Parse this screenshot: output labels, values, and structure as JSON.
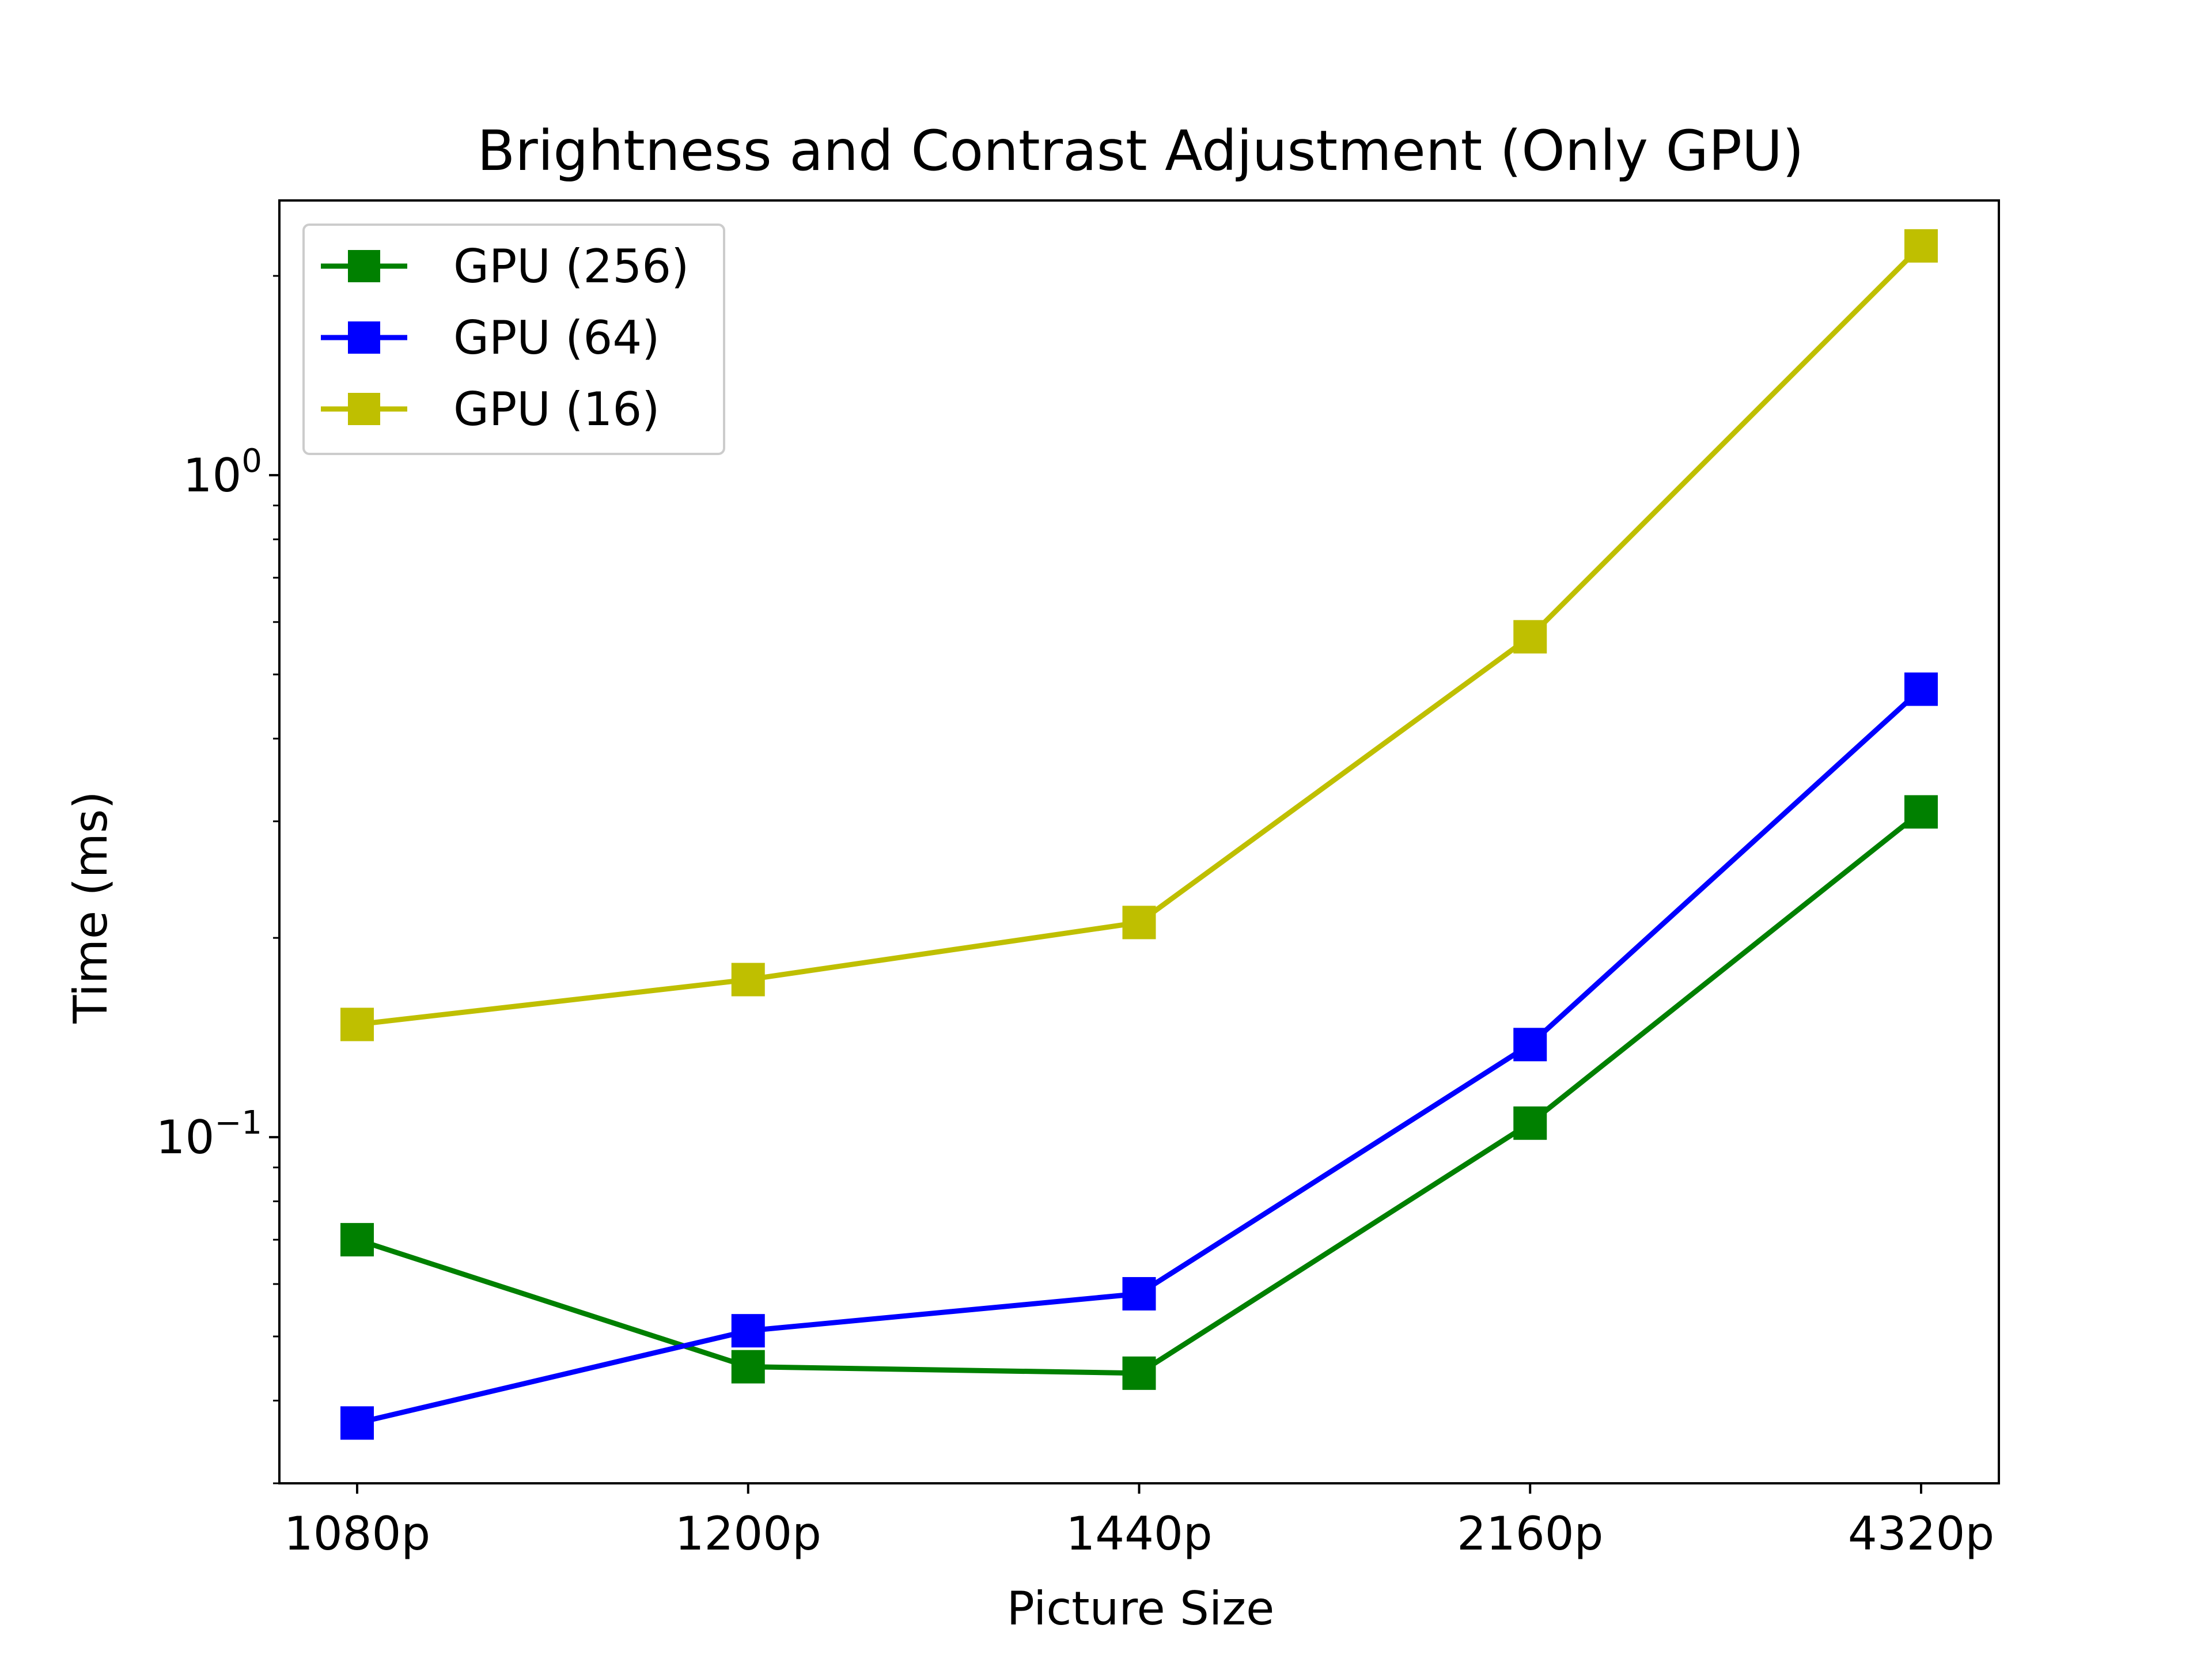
{
  "chart_data": {
    "type": "line",
    "title": "Brightness and Contrast Adjustment (Only GPU)",
    "xlabel": "Picture Size",
    "ylabel": "Time (ms)",
    "categories": [
      "1080p",
      "1200p",
      "1440p",
      "2160p",
      "4320p"
    ],
    "yscale": "log",
    "ylim": [
      0.03,
      2.6
    ],
    "yticks": [
      {
        "value": 1.0,
        "base": "10",
        "exp": "0"
      },
      {
        "value": 0.1,
        "base": "10",
        "exp": "−1"
      }
    ],
    "grid": false,
    "legend_position": "upper-left",
    "series": [
      {
        "name": "GPU (256)",
        "color": "#008000",
        "marker": "square",
        "values": [
          0.07,
          0.045,
          0.044,
          0.105,
          0.31
        ]
      },
      {
        "name": "GPU (64)",
        "color": "#0000ff",
        "marker": "square",
        "values": [
          0.037,
          0.051,
          0.058,
          0.138,
          0.475
        ]
      },
      {
        "name": "GPU (16)",
        "color": "#bfbf00",
        "marker": "square",
        "values": [
          0.148,
          0.173,
          0.211,
          0.57,
          2.22
        ]
      }
    ]
  }
}
